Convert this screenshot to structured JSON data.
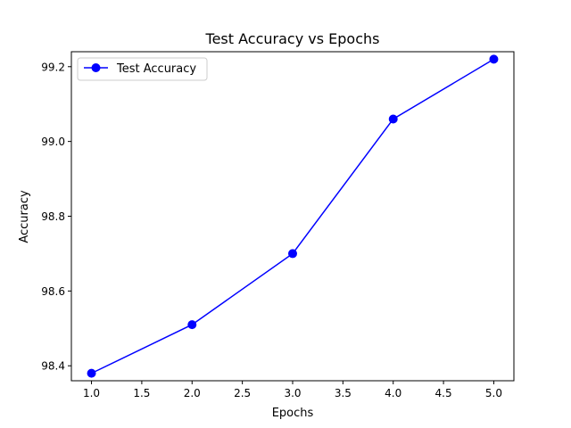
{
  "chart_data": {
    "type": "line",
    "title": "Test Accuracy vs Epochs",
    "xlabel": "Epochs",
    "ylabel": "Accuracy",
    "xlim": [
      0.8,
      5.2
    ],
    "ylim": [
      98.36,
      99.24
    ],
    "x_ticks": [
      1.0,
      1.5,
      2.0,
      2.5,
      3.0,
      3.5,
      4.0,
      4.5,
      5.0
    ],
    "x_tick_labels": [
      "1.0",
      "1.5",
      "2.0",
      "2.5",
      "3.0",
      "3.5",
      "4.0",
      "4.5",
      "5.0"
    ],
    "y_ticks": [
      98.4,
      98.6,
      98.8,
      99.0,
      99.2
    ],
    "y_tick_labels": [
      "98.4",
      "98.6",
      "98.8",
      "99.0",
      "99.2"
    ],
    "grid": false,
    "legend_position": "upper-left",
    "series": [
      {
        "name": "Test Accuracy",
        "color": "#0000ff",
        "marker": "circle",
        "x": [
          1,
          2,
          3,
          4,
          5
        ],
        "y": [
          98.38,
          98.51,
          98.7,
          99.06,
          99.22
        ]
      }
    ]
  }
}
